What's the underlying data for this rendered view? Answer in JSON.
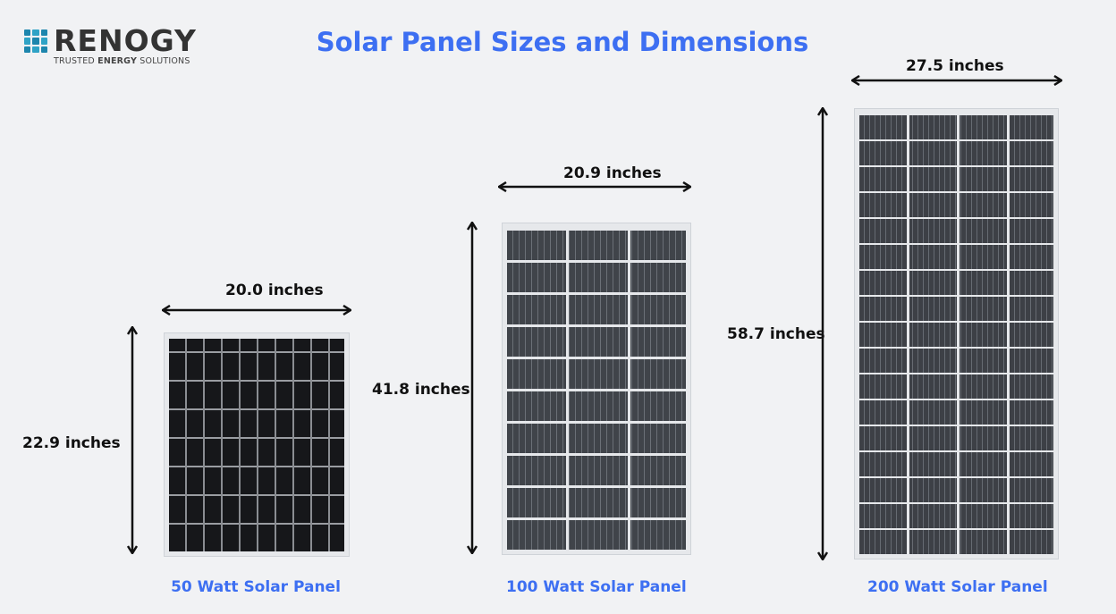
{
  "logo": {
    "word": "RENOGY",
    "tagline_pre": "TRUSTED ",
    "tagline_bold": "ENERGY",
    "tagline_post": " SOLUTIONS"
  },
  "title": "Solar Panel Sizes and Dimensions",
  "colors": {
    "accent": "#3d6ff2",
    "logo_blue": "#2fa3c6",
    "background": "#f1f2f4"
  },
  "panels": [
    {
      "name": "50 Watt Solar Panel",
      "width": "20.0 inches",
      "height": "22.9 inches"
    },
    {
      "name": "100 Watt Solar Panel",
      "width": "20.9 inches",
      "height": "41.8 inches"
    },
    {
      "name": "200 Watt Solar Panel",
      "width": "27.5 inches",
      "height": "58.7 inches"
    }
  ]
}
